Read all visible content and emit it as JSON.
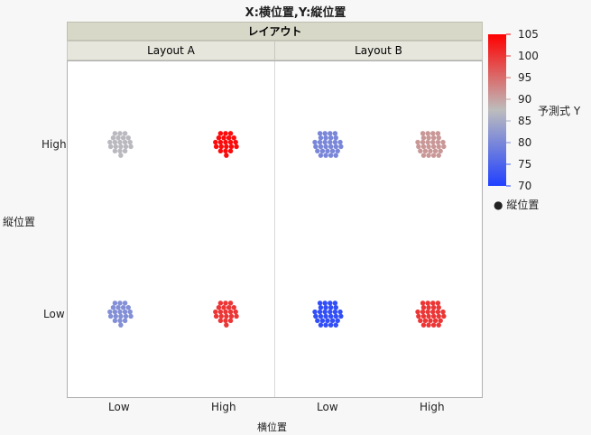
{
  "chart_data": {
    "type": "scatter",
    "title": "X:横位置,Y:縦位置",
    "group_header": "レイアウト",
    "groups": [
      "Layout A",
      "Layout B"
    ],
    "xlabel": "横位置",
    "ylabel": "縦位置",
    "x_categories": [
      "Low",
      "High"
    ],
    "y_categories": [
      "Low",
      "High"
    ],
    "color_legend": {
      "title": "予測式 Y",
      "min": 70,
      "max": 105,
      "ticks": [
        105,
        100,
        95,
        90,
        85,
        80,
        75,
        70
      ],
      "colors": {
        "low": "#2040ff",
        "mid": "#bdbdbd",
        "high": "#ff0000"
      }
    },
    "marker_legend": "縦位置",
    "clusters": [
      {
        "group": "Layout A",
        "x": "Low",
        "y": "High",
        "predicted": 87,
        "rows": [
          3,
          4,
          5,
          5,
          3,
          1
        ]
      },
      {
        "group": "Layout A",
        "x": "High",
        "y": "High",
        "predicted": 104,
        "rows": [
          3,
          4,
          5,
          5,
          3,
          1
        ]
      },
      {
        "group": "Layout B",
        "x": "Low",
        "y": "High",
        "predicted": 80,
        "rows": [
          4,
          4,
          6,
          6,
          5,
          4
        ]
      },
      {
        "group": "Layout B",
        "x": "High",
        "y": "High",
        "predicted": 91,
        "rows": [
          4,
          4,
          6,
          6,
          5,
          4
        ]
      },
      {
        "group": "Layout A",
        "x": "Low",
        "y": "Low",
        "predicted": 81,
        "rows": [
          3,
          4,
          5,
          5,
          3,
          1
        ]
      },
      {
        "group": "Layout A",
        "x": "High",
        "y": "Low",
        "predicted": 100,
        "rows": [
          3,
          4,
          5,
          5,
          3,
          1
        ]
      },
      {
        "group": "Layout B",
        "x": "Low",
        "y": "Low",
        "predicted": 72,
        "rows": [
          4,
          4,
          6,
          6,
          5,
          4
        ]
      },
      {
        "group": "Layout B",
        "x": "High",
        "y": "Low",
        "predicted": 100,
        "rows": [
          4,
          4,
          6,
          6,
          5,
          4
        ]
      }
    ]
  }
}
